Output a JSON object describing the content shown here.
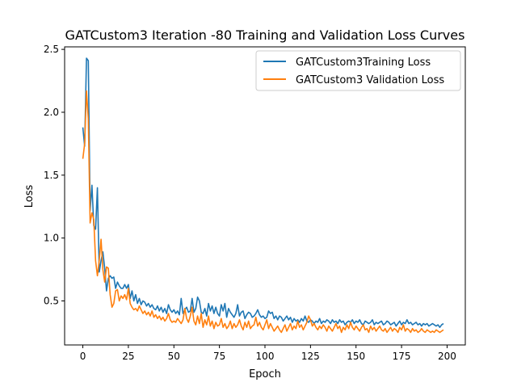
{
  "chart_data": {
    "type": "line",
    "title": "GATCustom3 Iteration -80 Training and Validation Loss Curves",
    "xlabel": "Epoch",
    "ylabel": "Loss",
    "xlim": [
      -10,
      210
    ],
    "ylim": [
      0.15,
      2.52
    ],
    "xticks": [
      0,
      25,
      50,
      75,
      100,
      125,
      150,
      175,
      200
    ],
    "yticks": [
      0.5,
      1.0,
      1.5,
      2.0,
      2.5
    ],
    "ytick_labels": [
      "0.5",
      "1.0",
      "1.5",
      "2.0",
      "2.5"
    ],
    "grid": false,
    "legend_position": "top-right",
    "series": [
      {
        "name": "GATCustom3Training Loss",
        "color": "#1f77b4",
        "values": [
          1.88,
          1.73,
          2.43,
          2.41,
          1.22,
          1.42,
          1.1,
          1.07,
          1.4,
          0.73,
          0.82,
          0.89,
          0.76,
          0.58,
          0.68,
          0.7,
          0.68,
          0.69,
          0.6,
          0.65,
          0.62,
          0.6,
          0.6,
          0.63,
          0.6,
          0.63,
          0.52,
          0.58,
          0.5,
          0.55,
          0.48,
          0.52,
          0.47,
          0.5,
          0.49,
          0.46,
          0.48,
          0.45,
          0.47,
          0.44,
          0.43,
          0.46,
          0.42,
          0.45,
          0.41,
          0.44,
          0.4,
          0.47,
          0.43,
          0.41,
          0.43,
          0.4,
          0.42,
          0.39,
          0.52,
          0.4,
          0.43,
          0.45,
          0.41,
          0.42,
          0.52,
          0.41,
          0.44,
          0.53,
          0.5,
          0.41,
          0.4,
          0.44,
          0.38,
          0.48,
          0.42,
          0.46,
          0.4,
          0.45,
          0.4,
          0.38,
          0.47,
          0.42,
          0.48,
          0.37,
          0.44,
          0.41,
          0.39,
          0.37,
          0.4,
          0.47,
          0.38,
          0.41,
          0.42,
          0.36,
          0.39,
          0.41,
          0.4,
          0.37,
          0.38,
          0.4,
          0.43,
          0.39,
          0.37,
          0.38,
          0.36,
          0.37,
          0.42,
          0.4,
          0.41,
          0.36,
          0.38,
          0.35,
          0.38,
          0.37,
          0.34,
          0.36,
          0.38,
          0.35,
          0.37,
          0.33,
          0.36,
          0.34,
          0.35,
          0.33,
          0.36,
          0.34,
          0.38,
          0.34,
          0.33,
          0.35,
          0.34,
          0.32,
          0.34,
          0.33,
          0.36,
          0.32,
          0.34,
          0.33,
          0.35,
          0.34,
          0.32,
          0.35,
          0.33,
          0.34,
          0.32,
          0.35,
          0.33,
          0.34,
          0.31,
          0.33,
          0.34,
          0.33,
          0.35,
          0.32,
          0.34,
          0.33,
          0.35,
          0.32,
          0.31,
          0.34,
          0.33,
          0.32,
          0.33,
          0.35,
          0.31,
          0.33,
          0.32,
          0.33,
          0.34,
          0.31,
          0.32,
          0.34,
          0.33,
          0.31,
          0.32,
          0.33,
          0.3,
          0.32,
          0.34,
          0.31,
          0.33,
          0.32,
          0.35,
          0.32,
          0.33,
          0.31,
          0.32,
          0.33,
          0.31,
          0.32,
          0.3,
          0.32,
          0.31,
          0.32,
          0.3,
          0.31,
          0.32,
          0.31,
          0.3,
          0.31,
          0.29,
          0.31,
          0.32
        ]
      },
      {
        "name": "GATCustom3 Validation Loss",
        "color": "#ff7f0e",
        "values": [
          1.63,
          1.75,
          2.17,
          1.95,
          1.12,
          1.2,
          1.15,
          0.82,
          0.7,
          0.82,
          0.99,
          0.75,
          0.65,
          0.77,
          0.76,
          0.55,
          0.45,
          0.48,
          0.58,
          0.59,
          0.5,
          0.54,
          0.52,
          0.55,
          0.51,
          0.6,
          0.48,
          0.45,
          0.43,
          0.44,
          0.42,
          0.46,
          0.43,
          0.4,
          0.42,
          0.39,
          0.41,
          0.38,
          0.42,
          0.37,
          0.39,
          0.36,
          0.38,
          0.35,
          0.37,
          0.34,
          0.36,
          0.4,
          0.35,
          0.33,
          0.34,
          0.33,
          0.36,
          0.34,
          0.32,
          0.35,
          0.44,
          0.36,
          0.33,
          0.38,
          0.45,
          0.34,
          0.31,
          0.38,
          0.32,
          0.4,
          0.29,
          0.35,
          0.31,
          0.38,
          0.3,
          0.34,
          0.28,
          0.33,
          0.3,
          0.31,
          0.36,
          0.29,
          0.32,
          0.28,
          0.3,
          0.34,
          0.28,
          0.32,
          0.29,
          0.31,
          0.35,
          0.3,
          0.27,
          0.33,
          0.29,
          0.34,
          0.28,
          0.3,
          0.31,
          0.37,
          0.3,
          0.33,
          0.29,
          0.27,
          0.31,
          0.35,
          0.28,
          0.32,
          0.29,
          0.26,
          0.28,
          0.3,
          0.27,
          0.25,
          0.28,
          0.31,
          0.26,
          0.29,
          0.32,
          0.27,
          0.3,
          0.28,
          0.34,
          0.29,
          0.31,
          0.27,
          0.3,
          0.33,
          0.38,
          0.35,
          0.3,
          0.32,
          0.29,
          0.27,
          0.3,
          0.28,
          0.31,
          0.29,
          0.26,
          0.3,
          0.28,
          0.26,
          0.29,
          0.32,
          0.28,
          0.3,
          0.25,
          0.29,
          0.27,
          0.31,
          0.28,
          0.33,
          0.29,
          0.27,
          0.3,
          0.28,
          0.26,
          0.29,
          0.31,
          0.27,
          0.28,
          0.25,
          0.3,
          0.27,
          0.29,
          0.26,
          0.28,
          0.3,
          0.27,
          0.26,
          0.28,
          0.25,
          0.27,
          0.29,
          0.26,
          0.28,
          0.27,
          0.25,
          0.29,
          0.27,
          0.31,
          0.26,
          0.28,
          0.27,
          0.25,
          0.28,
          0.26,
          0.27,
          0.25,
          0.26,
          0.28,
          0.26,
          0.25,
          0.27,
          0.26,
          0.25,
          0.26,
          0.25,
          0.27,
          0.26,
          0.25,
          0.26,
          0.27
        ]
      }
    ]
  }
}
